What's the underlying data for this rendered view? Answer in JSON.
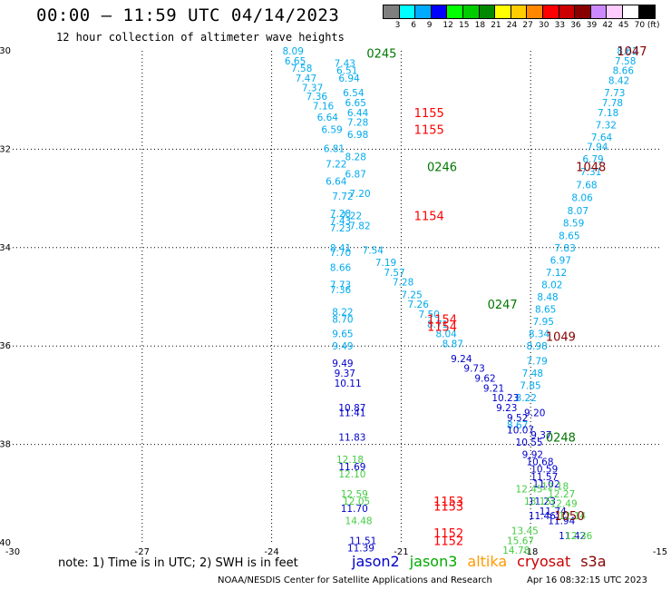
{
  "title": "00:00 – 11:59 UTC 04/14/2023",
  "subtitle": "12 hour collection of altimeter wave heights",
  "note": "note: 1) Time is in UTC; 2) SWH is in feet",
  "footer_left": "NOAA/NESDIS Center for Satellite Applications and Research",
  "footer_right": "Apr 16 08:32:15 UTC 2023",
  "colorbar": {
    "colors": [
      "#7f7f7f",
      "#00ffff",
      "#00aaff",
      "#0000ff",
      "#00ff00",
      "#00cc00",
      "#008800",
      "#ffff00",
      "#ffcc00",
      "#ff8800",
      "#ff0000",
      "#cc0000",
      "#880000",
      "#cc88ff",
      "#ffccff",
      "#ffffff",
      "#000000"
    ],
    "labels": [
      "3",
      "6",
      "9",
      "12",
      "15",
      "18",
      "21",
      "24",
      "27",
      "30",
      "33",
      "36",
      "39",
      "42",
      "45",
      "70 (ft)"
    ]
  },
  "legend": [
    {
      "name": "jason2",
      "color": "#0000cc"
    },
    {
      "name": "jason3",
      "color": "#00aa00"
    },
    {
      "name": "altika",
      "color": "#ff9900"
    },
    {
      "name": "cryosat",
      "color": "#cc0000"
    },
    {
      "name": "s3a",
      "color": "#880000"
    }
  ],
  "chart_data": {
    "type": "scatter",
    "title": "00:00 – 11:59 UTC 04/14/2023",
    "subtitle": "12 hour collection of altimeter wave heights",
    "xlim": [
      -30,
      -15
    ],
    "ylim": [
      -40,
      -30
    ],
    "xticks": [
      -30,
      -27,
      -24,
      -21,
      -18,
      -15
    ],
    "yticks": [
      -30,
      -32,
      -34,
      -36,
      -38,
      -40
    ],
    "grid": true,
    "track_time_labels": [
      {
        "text": "0245",
        "x": -21.8,
        "y": -30.05,
        "color": "#007700"
      },
      {
        "text": "1155",
        "x": -20.7,
        "y": -31.25,
        "color": "#ff0000"
      },
      {
        "text": "1155",
        "x": -20.7,
        "y": -31.6,
        "color": "#ff0000"
      },
      {
        "text": "0246",
        "x": -20.4,
        "y": -32.35,
        "color": "#007700"
      },
      {
        "text": "1154",
        "x": -20.7,
        "y": -33.35,
        "color": "#ff0000"
      },
      {
        "text": "0247",
        "x": -19.0,
        "y": -35.15,
        "color": "#007700"
      },
      {
        "text": "1154",
        "x": -20.4,
        "y": -35.45,
        "color": "#ff0000"
      },
      {
        "text": "1154",
        "x": -20.4,
        "y": -35.6,
        "color": "#ff0000"
      },
      {
        "text": "0248",
        "x": -17.65,
        "y": -37.85,
        "color": "#007700"
      },
      {
        "text": "1153",
        "x": -20.25,
        "y": -39.15,
        "color": "#ff0000"
      },
      {
        "text": "1153",
        "x": -20.25,
        "y": -39.25,
        "color": "#ff0000"
      },
      {
        "text": "1152",
        "x": -20.25,
        "y": -39.8,
        "color": "#ff0000"
      },
      {
        "text": "1152",
        "x": -20.25,
        "y": -39.95,
        "color": "#ff0000"
      },
      {
        "text": "1050",
        "x": -17.45,
        "y": -39.45,
        "color": "#880000"
      },
      {
        "text": "1049",
        "x": -17.65,
        "y": -35.8,
        "color": "#880000"
      },
      {
        "text": "1048",
        "x": -16.95,
        "y": -32.35,
        "color": "#880000"
      },
      {
        "text": "1047",
        "x": -16.0,
        "y": -30.0,
        "color": "#880000"
      }
    ],
    "series": [
      {
        "name": "jason3",
        "points": [
          [
            -23.75,
            -30.0,
            "8.09"
          ],
          [
            -23.7,
            -30.2,
            "6.65"
          ],
          [
            -23.55,
            -30.35,
            "7.58"
          ],
          [
            -23.45,
            -30.55,
            "7.47"
          ],
          [
            -23.3,
            -30.75,
            "7.37"
          ],
          [
            -23.2,
            -30.92,
            "7.36"
          ],
          [
            -23.05,
            -31.12,
            "7.16"
          ],
          [
            -22.95,
            -31.35,
            "6.64"
          ],
          [
            -22.85,
            -31.6,
            "6.59"
          ],
          [
            -22.8,
            -31.98,
            "6.81"
          ],
          [
            -22.75,
            -32.3,
            "7.22"
          ],
          [
            -22.75,
            -32.65,
            "6.64"
          ],
          [
            -22.6,
            -32.95,
            "7.72"
          ],
          [
            -22.4,
            -33.35,
            "7.22"
          ],
          [
            -22.2,
            -33.55,
            "7.82"
          ],
          [
            -21.9,
            -34.05,
            "7.54"
          ],
          [
            -21.6,
            -34.3,
            "7.19"
          ],
          [
            -21.4,
            -34.5,
            "7.57"
          ],
          [
            -21.2,
            -34.7,
            "7.28"
          ],
          [
            -21.0,
            -34.95,
            "7.25"
          ],
          [
            -20.85,
            -35.15,
            "7.26"
          ],
          [
            -20.6,
            -35.35,
            "7.50"
          ],
          [
            -20.4,
            -35.55,
            "8.71"
          ],
          [
            -20.2,
            -35.75,
            "8.04"
          ],
          [
            -20.05,
            -35.95,
            "8.87"
          ],
          [
            -22.55,
            -30.25,
            "7.43"
          ],
          [
            -22.5,
            -30.4,
            "6.51"
          ],
          [
            -22.45,
            -30.55,
            "6.94"
          ],
          [
            -22.35,
            -30.85,
            "6.54"
          ],
          [
            -22.3,
            -31.05,
            "6.65"
          ],
          [
            -22.25,
            -31.25,
            "6.44"
          ],
          [
            -22.25,
            -31.45,
            "7.28"
          ],
          [
            -22.25,
            -31.7,
            "6.98"
          ],
          [
            -22.3,
            -32.15,
            "8.28"
          ],
          [
            -22.3,
            -32.5,
            "6.87"
          ],
          [
            -22.2,
            -32.9,
            "7.20"
          ],
          [
            -22.65,
            -33.3,
            "7.28"
          ],
          [
            -22.65,
            -33.45,
            "7.43"
          ],
          [
            -22.65,
            -33.6,
            "7.23"
          ],
          [
            -22.65,
            -34.0,
            "8.41"
          ],
          [
            -22.65,
            -34.1,
            "7.70"
          ],
          [
            -22.65,
            -34.4,
            "8.66"
          ],
          [
            -22.65,
            -34.75,
            "7.73"
          ],
          [
            -22.65,
            -34.85,
            "7.36"
          ],
          [
            -22.6,
            -35.3,
            "8.22"
          ],
          [
            -22.6,
            -35.45,
            "8.70"
          ],
          [
            -22.6,
            -35.75,
            "9.65"
          ],
          [
            -22.6,
            -36.0,
            "9.49"
          ],
          [
            -16.0,
            -30.0,
            "8.62"
          ],
          [
            -16.05,
            -30.2,
            "7.58"
          ],
          [
            -16.1,
            -30.4,
            "8.66"
          ],
          [
            -16.2,
            -30.6,
            "8.42"
          ],
          [
            -16.3,
            -30.85,
            "7.73"
          ],
          [
            -16.35,
            -31.05,
            "7.78"
          ],
          [
            -16.45,
            -31.25,
            "7.18"
          ],
          [
            -16.5,
            -31.5,
            "7.32"
          ],
          [
            -16.6,
            -31.75,
            "7.64"
          ],
          [
            -16.7,
            -31.95,
            "7.94"
          ],
          [
            -16.8,
            -32.2,
            "6.79"
          ],
          [
            -16.85,
            -32.45,
            "7.31"
          ],
          [
            -16.95,
            -32.72,
            "7.68"
          ],
          [
            -17.05,
            -32.98,
            "8.06"
          ],
          [
            -17.15,
            -33.25,
            "8.07"
          ],
          [
            -17.25,
            -33.5,
            "8.59"
          ],
          [
            -17.35,
            -33.75,
            "8.65"
          ],
          [
            -17.45,
            -34.0,
            "7.83"
          ],
          [
            -17.55,
            -34.25,
            "6.97"
          ],
          [
            -17.65,
            -34.5,
            "7.12"
          ],
          [
            -17.75,
            -34.75,
            "8.02"
          ],
          [
            -17.85,
            -35.0,
            "8.48"
          ],
          [
            -17.9,
            -35.25,
            "8.65"
          ],
          [
            -17.95,
            -35.5,
            "7.95"
          ],
          [
            -18.05,
            -35.75,
            "8.34"
          ],
          [
            -18.1,
            -36.0,
            "8.98"
          ],
          [
            -18.1,
            -36.3,
            "7.79"
          ],
          [
            -18.2,
            -36.55,
            "7.48"
          ],
          [
            -18.25,
            -36.8,
            "7.85"
          ],
          [
            -18.35,
            -37.05,
            "8.22"
          ],
          [
            -18.55,
            -37.6,
            "8.67"
          ]
        ]
      },
      {
        "name": "jason2",
        "points": [
          [
            -22.6,
            -36.35,
            "9.49"
          ],
          [
            -22.55,
            -36.55,
            "9.37"
          ],
          [
            -22.55,
            -36.75,
            "10.11"
          ],
          [
            -22.45,
            -37.25,
            "10.87"
          ],
          [
            -22.45,
            -37.35,
            "11.41"
          ],
          [
            -22.45,
            -37.85,
            "11.83"
          ],
          [
            -22.45,
            -38.45,
            "11.69"
          ],
          [
            -22.4,
            -39.3,
            "11.70"
          ],
          [
            -22.2,
            -39.95,
            "11.51"
          ],
          [
            -22.25,
            -40.1,
            "11.39"
          ],
          [
            -19.85,
            -36.25,
            "9.24"
          ],
          [
            -19.55,
            -36.45,
            "9.73"
          ],
          [
            -19.3,
            -36.65,
            "9.62"
          ],
          [
            -19.1,
            -36.85,
            "9.21"
          ],
          [
            -18.9,
            -37.05,
            "10.23"
          ],
          [
            -18.8,
            -37.25,
            "9.23"
          ],
          [
            -18.55,
            -37.45,
            "9.52"
          ],
          [
            -18.55,
            -37.7,
            "10.07"
          ],
          [
            -18.35,
            -37.95,
            "10.55"
          ],
          [
            -18.2,
            -38.2,
            "9.92"
          ],
          [
            -18.1,
            -38.35,
            "10.68"
          ],
          [
            -18.0,
            -38.5,
            "10.59"
          ],
          [
            -18.0,
            -38.65,
            "11.57"
          ],
          [
            -17.95,
            -38.8,
            "11.02"
          ],
          [
            -18.05,
            -39.15,
            "11.23"
          ],
          [
            -18.05,
            -39.45,
            "11.46"
          ],
          [
            -17.8,
            -39.35,
            "11.74"
          ],
          [
            -17.6,
            -39.55,
            "11.94"
          ],
          [
            -17.35,
            -39.85,
            "11.42"
          ],
          [
            -18.15,
            -37.35,
            "9.20"
          ],
          [
            -18.0,
            -37.8,
            "9.37"
          ]
        ]
      },
      {
        "name": "jason3-green",
        "points": [
          [
            -22.5,
            -38.3,
            "12.18"
          ],
          [
            -22.45,
            -38.6,
            "12.10"
          ],
          [
            -22.4,
            -39.0,
            "12.59"
          ],
          [
            -22.35,
            -39.15,
            "12.05"
          ],
          [
            -22.3,
            -39.55,
            "14.48"
          ],
          [
            -18.35,
            -38.9,
            "12.45"
          ],
          [
            -18.15,
            -39.15,
            "13.15"
          ],
          [
            -17.75,
            -38.85,
            "12.18"
          ],
          [
            -17.6,
            -39.0,
            "12.27"
          ],
          [
            -17.55,
            -39.2,
            "12.49"
          ],
          [
            -17.35,
            -39.45,
            "12.14"
          ],
          [
            -17.2,
            -39.85,
            "12.36"
          ],
          [
            -18.45,
            -39.75,
            "13.45"
          ],
          [
            -18.55,
            -39.95,
            "15.67"
          ],
          [
            -18.65,
            -40.15,
            "14.78"
          ]
        ]
      }
    ]
  }
}
